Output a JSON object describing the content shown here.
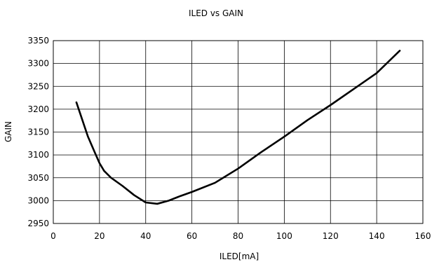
{
  "chart_data": {
    "type": "line",
    "title": "ILED vs GAIN",
    "xlabel": "ILED[mA]",
    "ylabel": "GAIN",
    "xlim": [
      0,
      160
    ],
    "ylim": [
      2950,
      3350
    ],
    "x_ticks": [
      0,
      20,
      40,
      60,
      80,
      100,
      120,
      140,
      160
    ],
    "y_ticks": [
      2950,
      3000,
      3050,
      3100,
      3150,
      3200,
      3250,
      3300,
      3350
    ],
    "grid": true,
    "legend": "none",
    "series": [
      {
        "x": [
          10,
          12,
          15,
          18,
          20,
          22,
          25,
          30,
          35,
          40,
          45,
          50,
          55,
          60,
          70,
          80,
          90,
          100,
          110,
          120,
          130,
          140,
          150
        ],
        "y": [
          3215,
          3185,
          3140,
          3105,
          3082,
          3065,
          3050,
          3032,
          3012,
          2996,
          2993,
          3000,
          3010,
          3019,
          3039,
          3070,
          3106,
          3140,
          3176,
          3209,
          3244,
          3279,
          3328
        ]
      }
    ]
  }
}
